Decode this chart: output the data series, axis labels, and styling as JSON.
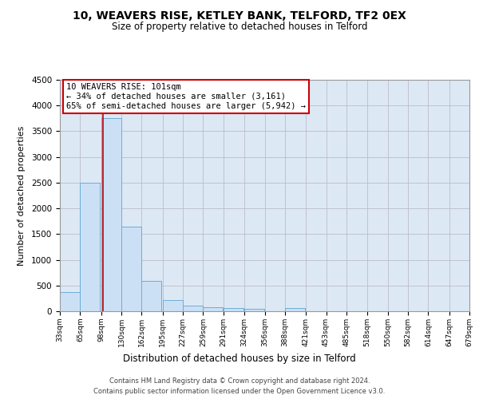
{
  "title1": "10, WEAVERS RISE, KETLEY BANK, TELFORD, TF2 0EX",
  "title2": "Size of property relative to detached houses in Telford",
  "xlabel": "Distribution of detached houses by size in Telford",
  "ylabel": "Number of detached properties",
  "footer1": "Contains HM Land Registry data © Crown copyright and database right 2024.",
  "footer2": "Contains public sector information licensed under the Open Government Licence v3.0.",
  "annotation_line1": "10 WEAVERS RISE: 101sqm",
  "annotation_line2": "← 34% of detached houses are smaller (3,161)",
  "annotation_line3": "65% of semi-detached houses are larger (5,942) →",
  "property_size": 101,
  "bar_color": "#cce0f5",
  "bar_edge_color": "#6aafd6",
  "vline_color": "#cc0000",
  "annotation_box_color": "#cc0000",
  "background_color": "#ffffff",
  "axes_facecolor": "#dde8f5",
  "grid_color": "#bbbbcc",
  "bins": [
    33,
    65,
    98,
    130,
    162,
    195,
    227,
    259,
    291,
    324,
    356,
    388,
    421,
    453,
    485,
    518,
    550,
    582,
    614,
    647,
    679
  ],
  "values": [
    365,
    2500,
    3750,
    1640,
    590,
    220,
    105,
    75,
    55,
    40,
    0,
    55,
    0,
    0,
    0,
    0,
    0,
    0,
    0,
    0
  ],
  "ylim": [
    0,
    4500
  ],
  "yticks": [
    0,
    500,
    1000,
    1500,
    2000,
    2500,
    3000,
    3500,
    4000,
    4500
  ]
}
